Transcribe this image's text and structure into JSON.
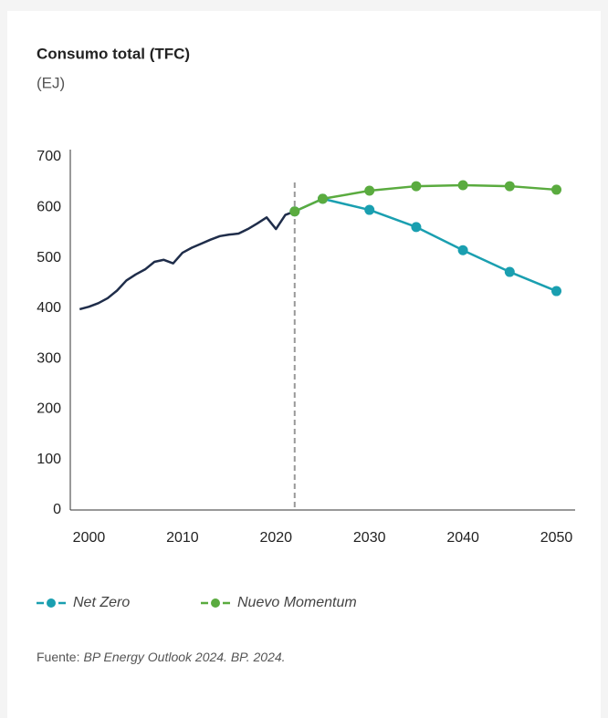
{
  "chart_data": {
    "type": "line",
    "title": "Consumo total (TFC)",
    "subtitle": "(EJ)",
    "source_label": "Fuente:",
    "source": "BP Energy Outlook 2024. BP. 2024.",
    "xlim": [
      1998,
      2052
    ],
    "xticks": [
      2000,
      2010,
      2020,
      2030,
      2040,
      2050
    ],
    "ylim": [
      0,
      700
    ],
    "yticks": [
      0,
      100,
      200,
      300,
      400,
      500,
      600,
      700
    ],
    "vline": 2022,
    "history": {
      "color": "#1f2d4a",
      "x": [
        1999,
        2000,
        2001,
        2002,
        2003,
        2004,
        2005,
        2006,
        2007,
        2008,
        2009,
        2010,
        2011,
        2012,
        2013,
        2014,
        2015,
        2016,
        2017,
        2018,
        2019,
        2020,
        2021,
        2022
      ],
      "values": [
        398,
        403,
        410,
        420,
        435,
        455,
        467,
        477,
        492,
        496,
        489,
        510,
        520,
        528,
        536,
        543,
        546,
        548,
        557,
        568,
        580,
        557,
        585,
        592
      ]
    },
    "x": [
      2022,
      2025,
      2030,
      2035,
      2040,
      2045,
      2050
    ],
    "series": [
      {
        "name": "Net Zero",
        "color": "#1a9fb0",
        "values": [
          592,
          617,
          595,
          561,
          515,
          472,
          434
        ]
      },
      {
        "name": "Nuevo Momentum",
        "color": "#5aab3f",
        "values": [
          592,
          617,
          633,
          642,
          644,
          642,
          635
        ]
      }
    ]
  }
}
